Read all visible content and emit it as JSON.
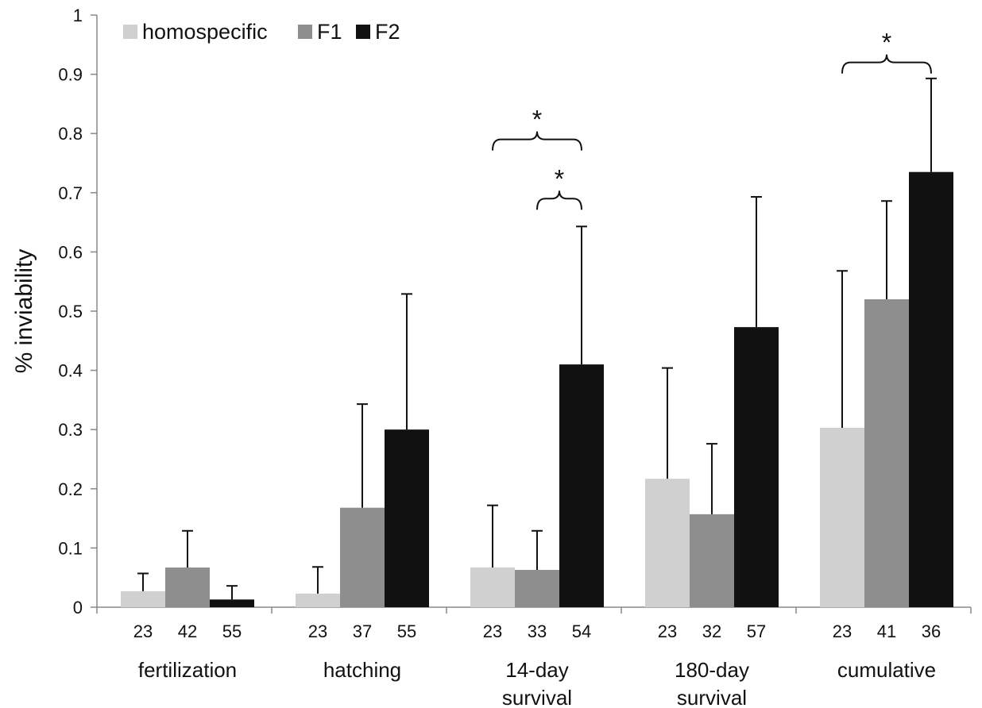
{
  "chart_data": {
    "type": "bar",
    "ylabel": "% inviability",
    "xlabel": "",
    "ylim": [
      0,
      1
    ],
    "yticks": [
      "0",
      "0.1",
      "0.2",
      "0.3",
      "0.4",
      "0.5",
      "0.6",
      "0.7",
      "0.8",
      "0.9",
      "1"
    ],
    "ytick_values": [
      0,
      0.1,
      0.2,
      0.3,
      0.4,
      0.5,
      0.6,
      0.7,
      0.8,
      0.9,
      1
    ],
    "grid": false,
    "legend_position": "top-left",
    "categories": [
      [
        "fertilization"
      ],
      [
        "hatching"
      ],
      [
        "14-day",
        "survival"
      ],
      [
        "180-day",
        "survival"
      ],
      [
        "cumulative"
      ]
    ],
    "series": [
      {
        "name": "homospecific",
        "color": "#d0d0d0",
        "values": [
          0.027,
          0.023,
          0.067,
          0.217,
          0.303
        ],
        "errors": [
          0.057,
          0.068,
          0.172,
          0.404,
          0.568
        ],
        "n": [
          "23",
          "23",
          "23",
          "23",
          "23"
        ]
      },
      {
        "name": "F1",
        "color": "#8e8e8e",
        "values": [
          0.067,
          0.168,
          0.063,
          0.157,
          0.52
        ],
        "errors": [
          0.129,
          0.343,
          0.129,
          0.276,
          0.686
        ],
        "n": [
          "42",
          "37",
          "33",
          "32",
          "41"
        ]
      },
      {
        "name": "F2",
        "color": "#111111",
        "values": [
          0.013,
          0.3,
          0.41,
          0.473,
          0.735
        ],
        "errors": [
          0.036,
          0.529,
          0.643,
          0.693,
          0.893
        ],
        "n": [
          "55",
          "55",
          "54",
          "57",
          "36"
        ]
      }
    ],
    "annotations": [
      {
        "text": "*",
        "category": 2,
        "from_series": 0,
        "to_series": 2,
        "level": 0.79
      },
      {
        "text": "*",
        "category": 2,
        "from_series": 1,
        "to_series": 2,
        "level": 0.69
      },
      {
        "text": "*",
        "category": 4,
        "from_series": 0,
        "to_series": 2,
        "level": 0.92
      }
    ]
  }
}
